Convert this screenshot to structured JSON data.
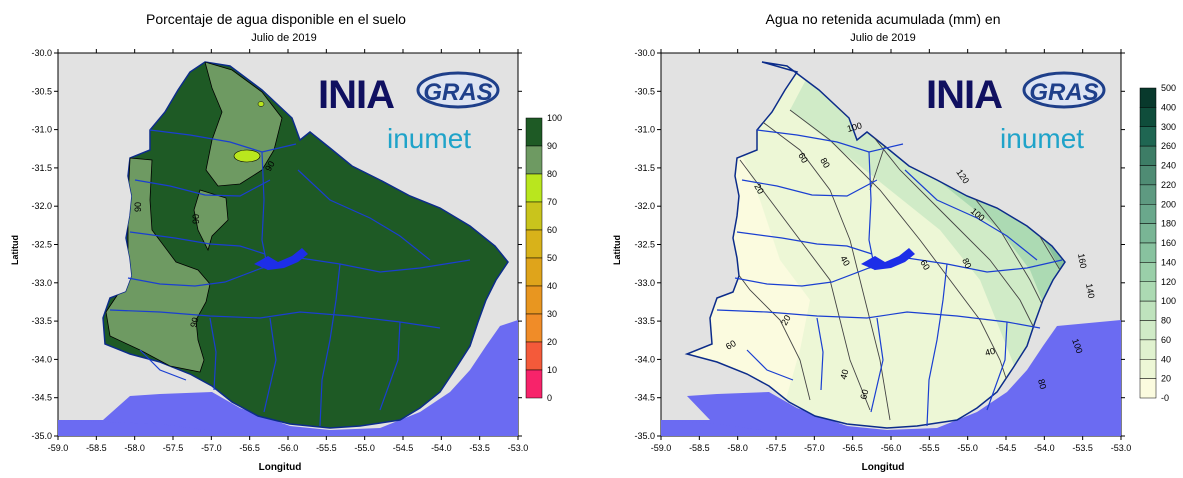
{
  "maps": [
    {
      "id": "left",
      "title": "Porcentaje de agua disponible en el suelo",
      "subtitle": "Julio de 2019",
      "xlabel": "Longitud",
      "ylabel": "Latitud",
      "x_ticks": [
        "-59.0",
        "-58.5",
        "-58.0",
        "-57.5",
        "-57.0",
        "-56.5",
        "-56.0",
        "-55.5",
        "-55.0",
        "-54.5",
        "-54.0",
        "-53.5",
        "-53.0"
      ],
      "y_ticks": [
        "-30.0",
        "-30.5",
        "-31.0",
        "-31.5",
        "-32.0",
        "-32.5",
        "-33.0",
        "-33.5",
        "-34.0",
        "-34.5",
        "-35.0"
      ],
      "legend": {
        "labels": [
          "100",
          "90",
          "80",
          "70",
          "60",
          "50",
          "40",
          "30",
          "20",
          "10",
          "0"
        ],
        "colors": [
          "#1e5a25",
          "#6e9a62",
          "#b9e61e",
          "#c9c41c",
          "#d8b21a",
          "#dfa41b",
          "#e89620",
          "#f08c28",
          "#f45a3a",
          "#f7236a"
        ]
      },
      "contour_labels": [
        "90",
        "90",
        "90",
        "90"
      ],
      "logos": {
        "ina": "INIA",
        "gras": "GRAS",
        "inumet": "inumet"
      }
    },
    {
      "id": "right",
      "title": "Agua no retenida acumulada (mm) en",
      "subtitle": "Julio de 2019",
      "xlabel": "Longitud",
      "ylabel": "Latitud",
      "x_ticks": [
        "-59.0",
        "-58.5",
        "-58.0",
        "-57.5",
        "-57.0",
        "-56.5",
        "-56.0",
        "-55.5",
        "-55.0",
        "-54.5",
        "-54.0",
        "-53.5",
        "-53.0"
      ],
      "y_ticks": [
        "-30.0",
        "-30.5",
        "-31.0",
        "-31.5",
        "-32.0",
        "-32.5",
        "-33.0",
        "-33.5",
        "-34.0",
        "-34.5",
        "-35.0"
      ],
      "legend": {
        "labels": [
          "500",
          "400",
          "300",
          "260",
          "240",
          "220",
          "200",
          "180",
          "160",
          "140",
          "120",
          "100",
          "80",
          "60",
          "40",
          "20",
          "-0"
        ],
        "colors": [
          "#08392c",
          "#0f4d3b",
          "#1f6652",
          "#3d7d66",
          "#4f8c74",
          "#5e9a81",
          "#6aa88c",
          "#79b595",
          "#88c29f",
          "#9acfa9",
          "#acdab3",
          "#bfe3bd",
          "#d0ebc7",
          "#e0f2cf",
          "#edf7d6",
          "#fbfbdf"
        ]
      },
      "contour_labels": [
        "100",
        "60",
        "80",
        "120",
        "20",
        "100",
        "40",
        "60",
        "80",
        "160",
        "20",
        "40",
        "100",
        "140",
        "40",
        "60",
        "80",
        "60"
      ],
      "logos": {
        "ina": "INIA",
        "gras": "GRAS",
        "inumet": "inumet"
      }
    }
  ]
}
